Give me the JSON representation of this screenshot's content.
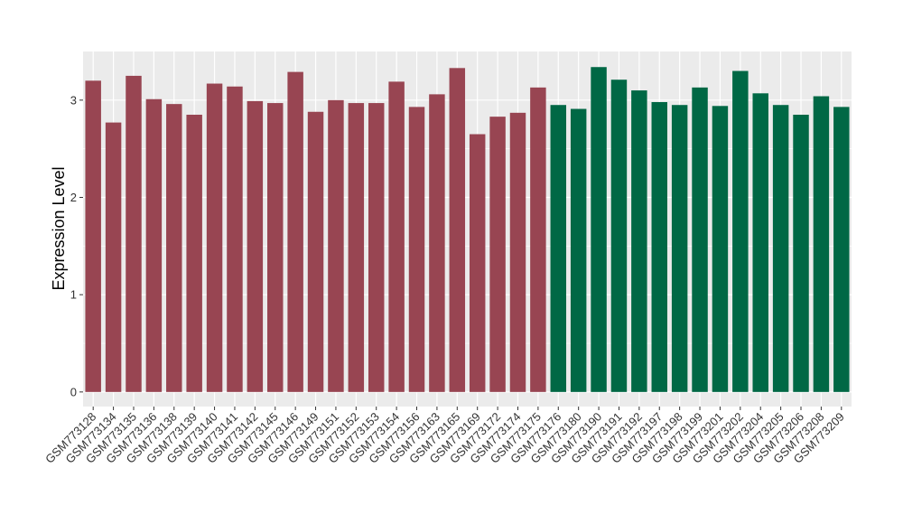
{
  "chart_data": {
    "type": "bar",
    "title": "",
    "xlabel": "",
    "ylabel": "Expression Level",
    "ylim": [
      -0.15,
      3.5
    ],
    "yticks": [
      0,
      1,
      2,
      3
    ],
    "grid": true,
    "legend": "none",
    "colors": {
      "group1": "#984552",
      "group2": "#006845",
      "panel": "#ebebeb",
      "grid": "#ffffff"
    },
    "categories": [
      "GSM773128",
      "GSM773134",
      "GSM773135",
      "GSM773136",
      "GSM773138",
      "GSM773139",
      "GSM773140",
      "GSM773141",
      "GSM773142",
      "GSM773145",
      "GSM773146",
      "GSM773149",
      "GSM773151",
      "GSM773152",
      "GSM773153",
      "GSM773154",
      "GSM773156",
      "GSM773163",
      "GSM773165",
      "GSM773169",
      "GSM773172",
      "GSM773174",
      "GSM773175",
      "GSM773176",
      "GSM773180",
      "GSM773190",
      "GSM773191",
      "GSM773192",
      "GSM773197",
      "GSM773198",
      "GSM773199",
      "GSM773201",
      "GSM773202",
      "GSM773204",
      "GSM773205",
      "GSM773206",
      "GSM773208",
      "GSM773209"
    ],
    "values": [
      3.2,
      2.77,
      3.25,
      3.01,
      2.96,
      2.85,
      3.17,
      3.14,
      2.99,
      2.97,
      3.29,
      2.88,
      3.0,
      2.97,
      2.97,
      3.19,
      2.93,
      3.06,
      3.33,
      2.65,
      2.83,
      2.87,
      3.13,
      2.95,
      2.91,
      3.34,
      3.21,
      3.1,
      2.98,
      2.95,
      3.13,
      2.94,
      3.3,
      3.07,
      2.95,
      2.85,
      3.04,
      2.93
    ],
    "groups": [
      1,
      1,
      1,
      1,
      1,
      1,
      1,
      1,
      1,
      1,
      1,
      1,
      1,
      1,
      1,
      1,
      1,
      1,
      1,
      1,
      1,
      1,
      1,
      2,
      2,
      2,
      2,
      2,
      2,
      2,
      2,
      2,
      2,
      2,
      2,
      2,
      2,
      2
    ]
  }
}
